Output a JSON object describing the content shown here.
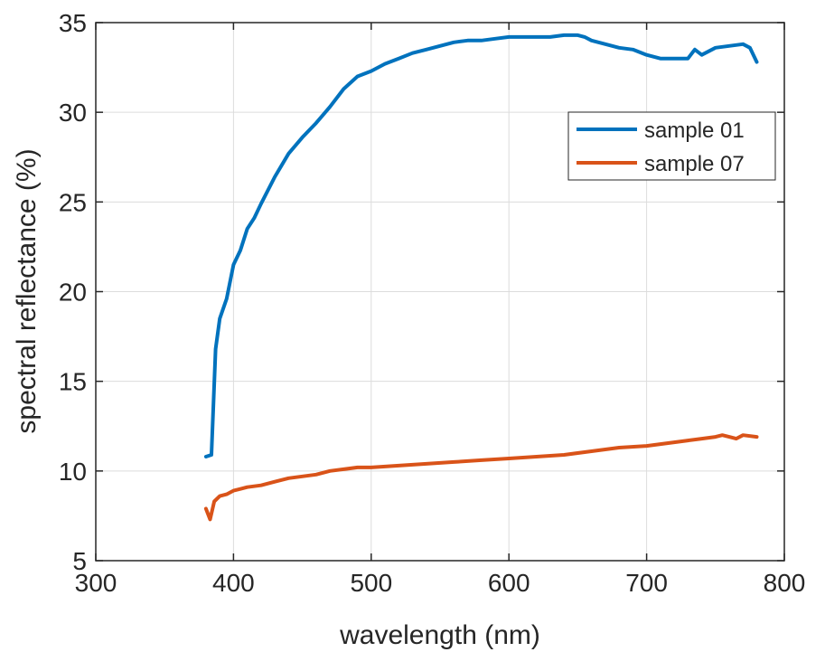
{
  "chart_data": {
    "type": "line",
    "title": "",
    "xlabel": "wavelength (nm)",
    "ylabel": "spectral reflectance (%)",
    "xlim": [
      300,
      800
    ],
    "ylim": [
      5,
      35
    ],
    "xticks": [
      300,
      400,
      500,
      600,
      700,
      800
    ],
    "yticks": [
      5,
      10,
      15,
      20,
      25,
      30,
      35
    ],
    "grid": true,
    "legend_position": "top-right",
    "series": [
      {
        "name": "sample 01",
        "color": "#0072BD",
        "x": [
          380,
          384,
          387,
          390,
          395,
          400,
          405,
          410,
          415,
          420,
          430,
          440,
          450,
          460,
          470,
          480,
          490,
          500,
          510,
          520,
          530,
          540,
          550,
          560,
          570,
          580,
          590,
          600,
          610,
          620,
          630,
          640,
          650,
          655,
          660,
          670,
          680,
          690,
          700,
          710,
          720,
          730,
          735,
          740,
          750,
          760,
          770,
          775,
          780
        ],
        "y": [
          10.8,
          10.9,
          16.8,
          18.5,
          19.6,
          21.5,
          22.3,
          23.5,
          24.1,
          24.9,
          26.4,
          27.7,
          28.6,
          29.4,
          30.3,
          31.3,
          32.0,
          32.3,
          32.7,
          33.0,
          33.3,
          33.5,
          33.7,
          33.9,
          34.0,
          34.0,
          34.1,
          34.2,
          34.2,
          34.2,
          34.2,
          34.3,
          34.3,
          34.2,
          34.0,
          33.8,
          33.6,
          33.5,
          33.2,
          33.0,
          33.0,
          33.0,
          33.5,
          33.2,
          33.6,
          33.7,
          33.8,
          33.6,
          32.8
        ]
      },
      {
        "name": "sample 07",
        "color": "#D95319",
        "x": [
          380,
          383,
          386,
          390,
          395,
          400,
          405,
          410,
          420,
          430,
          440,
          450,
          460,
          470,
          480,
          490,
          500,
          520,
          540,
          560,
          580,
          600,
          620,
          640,
          660,
          680,
          700,
          710,
          720,
          730,
          740,
          750,
          755,
          760,
          765,
          770,
          780
        ],
        "y": [
          7.9,
          7.3,
          8.3,
          8.6,
          8.7,
          8.9,
          9.0,
          9.1,
          9.2,
          9.4,
          9.6,
          9.7,
          9.8,
          10.0,
          10.1,
          10.2,
          10.2,
          10.3,
          10.4,
          10.5,
          10.6,
          10.7,
          10.8,
          10.9,
          11.1,
          11.3,
          11.4,
          11.5,
          11.6,
          11.7,
          11.8,
          11.9,
          12.0,
          11.9,
          11.8,
          12.0,
          11.9
        ]
      }
    ]
  }
}
